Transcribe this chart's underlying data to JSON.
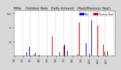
{
  "title": "Milw    Outdoor Rain   Daily Amount   (Past/Previous Year)",
  "background_color": "#d8d8d8",
  "plot_bg_color": "#ffffff",
  "bar_color_current": "#0000cc",
  "bar_color_prev": "#cc0000",
  "legend_current": "Past",
  "legend_prev": "Previous Year",
  "n_days": 365,
  "ylim": [
    0,
    1.6
  ],
  "yticks": [
    0.5,
    1.0,
    1.5
  ],
  "ytick_labels": [
    ".5",
    "1.",
    "1.5"
  ],
  "tick_fontsize": 3.2,
  "title_fontsize": 3.5,
  "grid_color": "#999999",
  "grid_style": "--",
  "seed": 42,
  "bar_width": 0.8
}
